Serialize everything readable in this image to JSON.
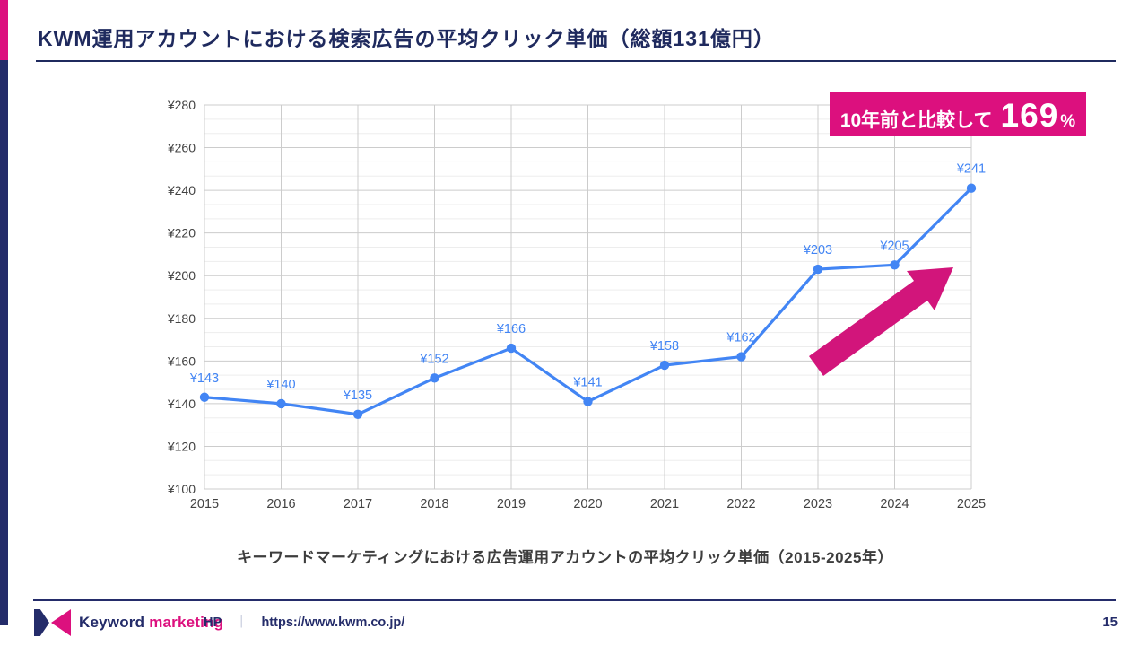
{
  "header": {
    "title": "KWM運用アカウントにおける検索広告の平均クリック単価（総額131億円）"
  },
  "badge": {
    "prefix": "10年前と比較して",
    "value": "169",
    "suffix": "%"
  },
  "caption": "キーワードマーケティングにおける広告運用アカウントの平均クリック単価（2015-2025年）",
  "chart_data": {
    "type": "line",
    "categories": [
      "2015",
      "2016",
      "2017",
      "2018",
      "2019",
      "2020",
      "2021",
      "2022",
      "2023",
      "2024",
      "2025"
    ],
    "values": [
      143,
      140,
      135,
      152,
      166,
      141,
      158,
      162,
      203,
      205,
      241
    ],
    "point_labels": [
      "¥143",
      "¥140",
      "¥135",
      "¥152",
      "¥166",
      "¥141",
      "¥158",
      "¥162",
      "¥203",
      "¥205",
      "¥241"
    ],
    "y_ticks": [
      100,
      120,
      140,
      160,
      180,
      200,
      220,
      240,
      260,
      280
    ],
    "y_tick_labels": [
      "¥100",
      "¥120",
      "¥140",
      "¥160",
      "¥180",
      "¥200",
      "¥220",
      "¥240",
      "¥260",
      "¥280"
    ],
    "ylim": [
      100,
      280
    ],
    "xlabel": "",
    "ylabel": "",
    "grid": true,
    "legend": false,
    "series_color": "#4285F4"
  },
  "footer": {
    "brand_word1": "Keyword",
    "brand_word2": "marketing",
    "hp_label": "HP",
    "separator": "｜",
    "url": "https://www.kwm.co.jp/",
    "page_number": "15"
  },
  "colors": {
    "accent_pink": "#DC107E",
    "arrow_pink": "#D2157B",
    "navy": "#242C6A",
    "title_navy": "#1F2A5E",
    "line_blue": "#4285F4",
    "gridline_major": "#cccccc",
    "gridline_minor": "#ededed",
    "axis_label": "#424242"
  }
}
